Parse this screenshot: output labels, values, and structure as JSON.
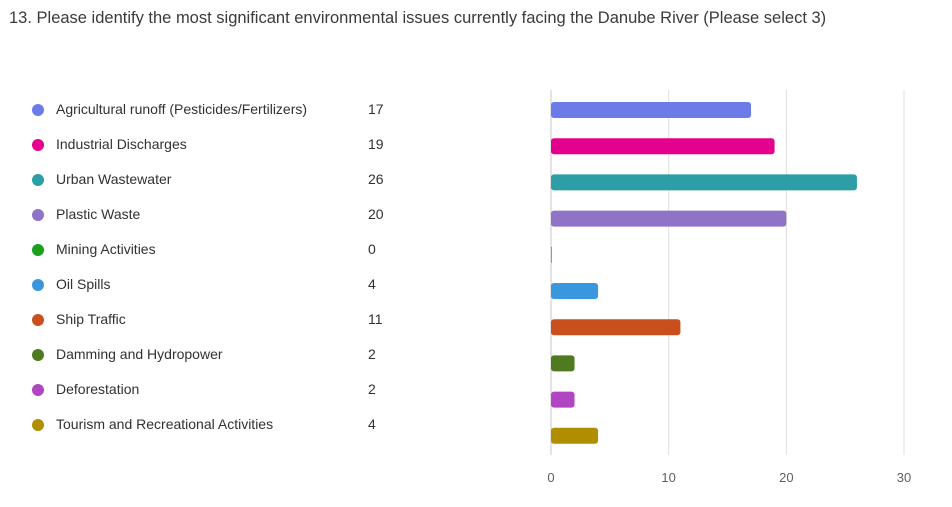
{
  "question": {
    "title": "13. Please identify the most significant environmental issues currently facing the Danube River (Please select 3)"
  },
  "chart_data": {
    "type": "bar",
    "orientation": "horizontal",
    "title": "13. Please identify the most significant environmental issues currently facing the Danube River (Please select 3)",
    "categories": [
      "Agricultural runoff (Pesticides/Fertilizers)",
      "Industrial Discharges",
      "Urban Wastewater",
      "Plastic Waste",
      "Mining Activities",
      "Oil Spills",
      "Ship Traffic",
      "Damming and Hydropower",
      "Deforestation",
      "Tourism and Recreational Activities"
    ],
    "values": [
      17,
      19,
      26,
      20,
      0,
      4,
      11,
      2,
      2,
      4
    ],
    "colors": [
      "#6b7be8",
      "#e3008c",
      "#2d9ea5",
      "#8f73c6",
      "#1aa01a",
      "#3a96dd",
      "#c9501c",
      "#4f7a20",
      "#b146c2",
      "#b08e00"
    ],
    "xlim": [
      0,
      30
    ],
    "xticks": [
      0,
      10,
      20,
      30
    ],
    "xlabel": "",
    "ylabel": "",
    "grid": true,
    "legend_position": "left"
  }
}
